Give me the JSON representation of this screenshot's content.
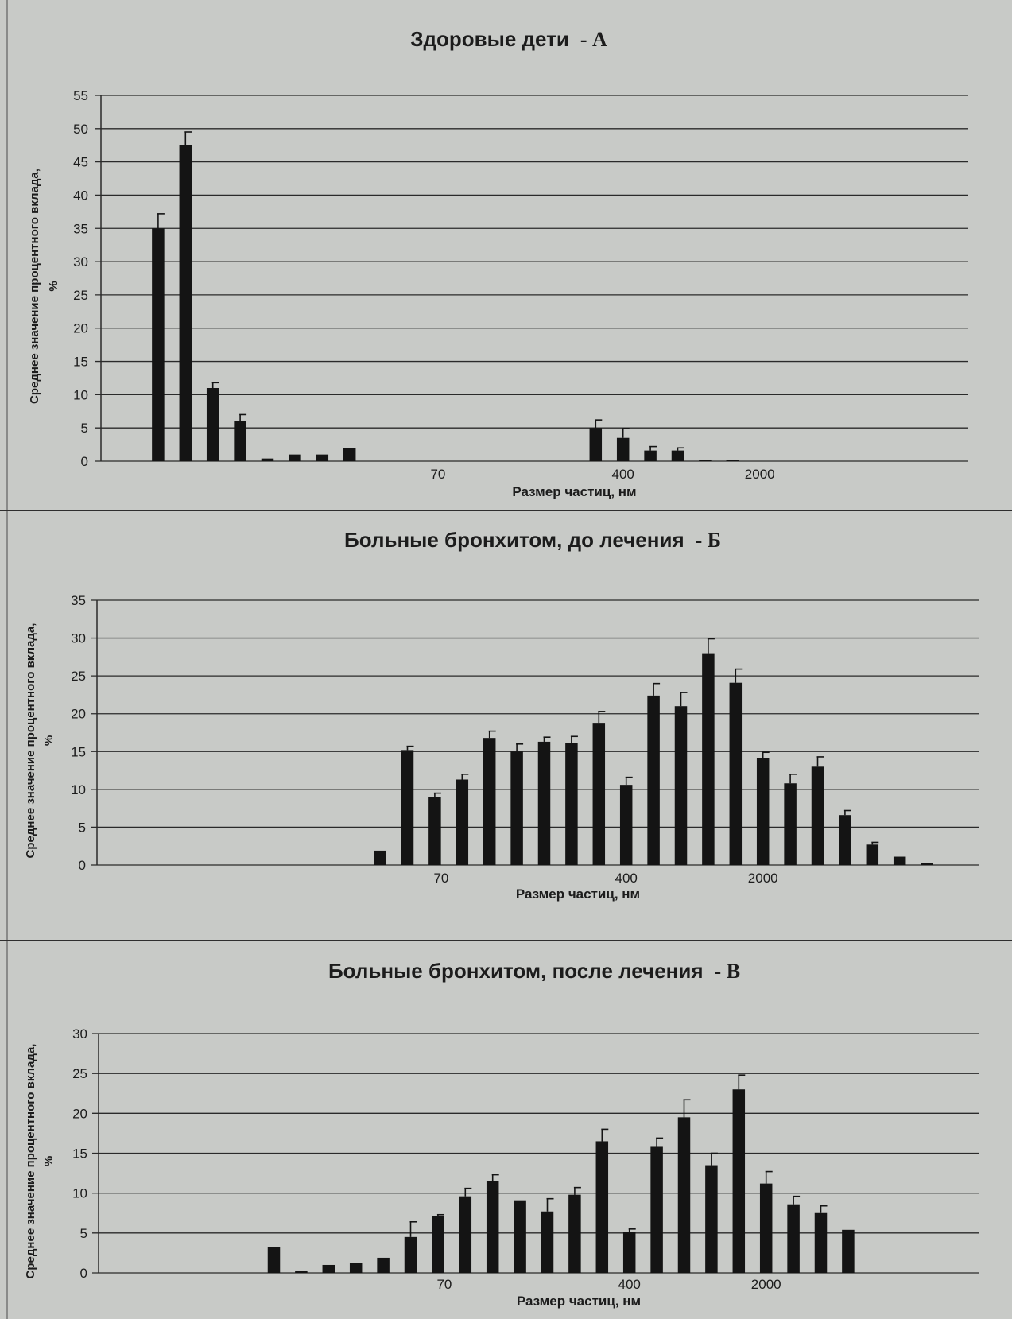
{
  "chart_data": [
    {
      "type": "bar",
      "title": "Здоровые дети",
      "title_suffix": "- А",
      "xlabel": "Размер частиц, нм",
      "ylabel_line1": "Среднее значение процентного вклада,",
      "ylabel_line2": "%",
      "ylim": [
        0,
        55
      ],
      "ytick_step": 5,
      "x_tick_labels": [
        {
          "label": "70",
          "slot": 11
        },
        {
          "label": "400",
          "slot": 18
        },
        {
          "label": "2000",
          "slot": 23
        }
      ],
      "grid": true,
      "values": [
        0,
        35,
        47.5,
        11,
        6,
        0.4,
        1,
        1,
        2,
        0,
        0,
        0,
        0,
        0,
        0,
        0,
        0,
        5,
        3.5,
        1.6,
        1.6,
        0.1,
        0.1,
        0,
        0,
        0,
        0,
        0,
        0,
        0,
        0
      ],
      "errors": [
        0,
        2.2,
        2,
        0.8,
        1,
        0,
        0,
        0,
        0,
        0,
        0,
        0,
        0,
        0,
        0,
        0,
        0,
        1.2,
        1.4,
        0.6,
        0.4,
        0,
        0,
        0,
        0,
        0,
        0,
        0,
        0,
        0,
        0
      ]
    },
    {
      "type": "bar",
      "title": "Больные бронхитом, до лечения",
      "title_suffix": "- Б",
      "xlabel": "Размер частиц, нм",
      "ylabel_line1": "Среднее значение процентного вклада,",
      "ylabel_line2": "%",
      "ylim": [
        0,
        35
      ],
      "ytick_step": 5,
      "x_tick_labels": [
        {
          "label": "70",
          "slot": 11
        },
        {
          "label": "400",
          "slot": 18
        },
        {
          "label": "2000",
          "slot": 23
        }
      ],
      "grid": true,
      "values": [
        0,
        0,
        0,
        0,
        0,
        0,
        0,
        0,
        0,
        1.9,
        15.2,
        9,
        11.3,
        16.8,
        15,
        16.3,
        16.1,
        18.8,
        10.6,
        22.4,
        21,
        28,
        24.1,
        14.1,
        10.8,
        13,
        6.6,
        2.7,
        1.1,
        0.1,
        0
      ],
      "errors": [
        0,
        0,
        0,
        0,
        0,
        0,
        0,
        0,
        0,
        0,
        0.5,
        0.5,
        0.7,
        0.9,
        1,
        0.6,
        0.9,
        1.5,
        1,
        1.6,
        1.8,
        1.9,
        1.8,
        0.8,
        1.2,
        1.3,
        0.6,
        0.3,
        0,
        0,
        0
      ]
    },
    {
      "type": "bar",
      "title": "Больные бронхитом, после лечения",
      "title_suffix": "- В",
      "xlabel": "Размер частиц, нм",
      "ylabel_line1": "Среднее значение процентного вклада,",
      "ylabel_line2": "%",
      "ylim": [
        0,
        30
      ],
      "ytick_step": 5,
      "x_tick_labels": [
        {
          "label": "70",
          "slot": 11
        },
        {
          "label": "400",
          "slot": 18
        },
        {
          "label": "2000",
          "slot": 23
        }
      ],
      "grid": true,
      "values": [
        0,
        0,
        0,
        0,
        0,
        3.2,
        0.3,
        1,
        1.2,
        1.9,
        4.5,
        7.1,
        9.6,
        11.5,
        9.1,
        7.7,
        9.8,
        16.5,
        5.1,
        15.8,
        19.5,
        13.5,
        23,
        11.2,
        8.6,
        7.5,
        5.4,
        0,
        0,
        0,
        0
      ],
      "errors": [
        0,
        0,
        0,
        0,
        0,
        0,
        0,
        0,
        0,
        0,
        1.9,
        0.2,
        1,
        0.8,
        0,
        1.6,
        0.9,
        1.5,
        0.4,
        1.1,
        2.2,
        1.5,
        1.8,
        1.5,
        1,
        0.9,
        0,
        0,
        0,
        0,
        0
      ]
    }
  ]
}
